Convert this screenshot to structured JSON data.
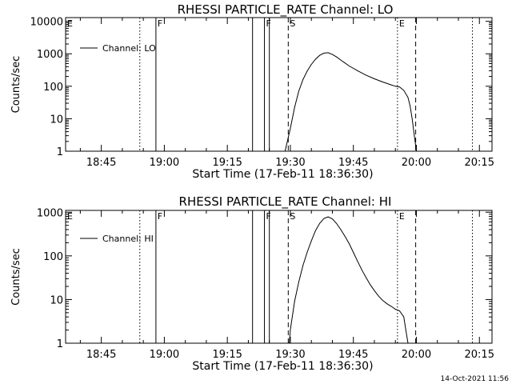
{
  "chart_data": [
    {
      "type": "line",
      "title": "RHESSI PARTICLE_RATE Channel: LO",
      "xlabel": "Start Time (17-Feb-11 18:36:30)",
      "ylabel": "Counts/sec",
      "yscale": "log",
      "ylim": [
        1,
        13000
      ],
      "xlim": [
        "18:36:30",
        "20:18:00"
      ],
      "x_ticks": [
        "18:45",
        "19:00",
        "19:15",
        "19:30",
        "19:45",
        "20:00",
        "20:15"
      ],
      "y_ticks": [
        "1",
        "10",
        "100",
        "1000",
        "10000"
      ],
      "legend": {
        "label": "Channel: LO",
        "position": "top-left"
      },
      "markers": [
        {
          "label": "E",
          "time": "18:36:30",
          "style": "dotted"
        },
        {
          "label": "",
          "time": "18:54:10",
          "style": "dotted"
        },
        {
          "label": "F",
          "time": "18:58:00",
          "style": "solid"
        },
        {
          "label": "",
          "time": "19:21:00",
          "style": "solid"
        },
        {
          "label": "F",
          "time": "19:23:50",
          "style": "solid"
        },
        {
          "label": "",
          "time": "19:25:00",
          "style": "solid"
        },
        {
          "label": "S",
          "time": "19:29:30",
          "style": "dashed"
        },
        {
          "label": "E",
          "time": "19:55:30",
          "style": "dotted"
        },
        {
          "label": "",
          "time": "19:59:50",
          "style": "dashed"
        },
        {
          "label": "",
          "time": "20:13:20",
          "style": "dotted"
        }
      ],
      "series": [
        {
          "name": "Channel: LO",
          "x": [
            "19:28:45",
            "19:29:00",
            "19:30:00",
            "19:31:00",
            "19:32:00",
            "19:33:00",
            "19:34:00",
            "19:35:00",
            "19:36:00",
            "19:37:00",
            "19:38:00",
            "19:39:00",
            "19:40:00",
            "19:41:00",
            "19:42:00",
            "19:43:00",
            "19:44:00",
            "19:46:00",
            "19:48:00",
            "19:50:00",
            "19:52:00",
            "19:54:00",
            "19:55:00",
            "19:56:00",
            "19:57:00",
            "19:58:00",
            "19:58:30",
            "19:59:00",
            "19:59:30",
            "20:00:00"
          ],
          "y": [
            1,
            1.4,
            5,
            22,
            70,
            160,
            290,
            470,
            680,
            900,
            1050,
            1080,
            950,
            800,
            640,
            520,
            420,
            300,
            220,
            170,
            135,
            110,
            100,
            95,
            75,
            45,
            25,
            10,
            3,
            1
          ]
        }
      ]
    },
    {
      "type": "line",
      "title": "RHESSI PARTICLE_RATE Channel: HI",
      "xlabel": "Start Time (17-Feb-11 18:36:30)",
      "ylabel": "Counts/sec",
      "yscale": "log",
      "ylim": [
        1,
        1100
      ],
      "xlim": [
        "18:36:30",
        "20:18:00"
      ],
      "x_ticks": [
        "18:45",
        "19:00",
        "19:15",
        "19:30",
        "19:45",
        "20:00",
        "20:15"
      ],
      "y_ticks": [
        "1",
        "10",
        "100",
        "1000"
      ],
      "legend": {
        "label": "Channel: HI",
        "position": "top-left"
      },
      "markers": [
        {
          "label": "E",
          "time": "18:36:30",
          "style": "dotted"
        },
        {
          "label": "",
          "time": "18:54:10",
          "style": "dotted"
        },
        {
          "label": "F",
          "time": "18:58:00",
          "style": "solid"
        },
        {
          "label": "",
          "time": "19:21:00",
          "style": "solid"
        },
        {
          "label": "F",
          "time": "19:23:50",
          "style": "solid"
        },
        {
          "label": "",
          "time": "19:25:00",
          "style": "solid"
        },
        {
          "label": "S",
          "time": "19:29:30",
          "style": "dashed"
        },
        {
          "label": "E",
          "time": "19:55:30",
          "style": "dotted"
        },
        {
          "label": "",
          "time": "19:59:50",
          "style": "dashed"
        },
        {
          "label": "",
          "time": "20:13:20",
          "style": "dotted"
        }
      ],
      "series": [
        {
          "name": "Channel: HI",
          "x": [
            "19:29:45",
            "19:30:00",
            "19:31:00",
            "19:32:00",
            "19:33:00",
            "19:34:00",
            "19:35:00",
            "19:36:00",
            "19:37:00",
            "19:38:00",
            "19:39:00",
            "19:40:00",
            "19:41:00",
            "19:42:00",
            "19:43:00",
            "19:44:00",
            "19:45:00",
            "19:46:00",
            "19:47:00",
            "19:48:00",
            "19:49:00",
            "19:50:00",
            "19:51:00",
            "19:52:00",
            "19:53:00",
            "19:54:00",
            "19:55:00",
            "19:56:00",
            "19:57:00",
            "19:57:30",
            "19:58:00"
          ],
          "y": [
            1,
            2,
            9,
            25,
            60,
            120,
            220,
            380,
            560,
            720,
            780,
            700,
            550,
            400,
            280,
            190,
            120,
            75,
            48,
            32,
            22,
            16,
            12,
            9.5,
            8,
            7,
            6,
            5.5,
            4,
            2,
            1
          ]
        }
      ]
    }
  ],
  "footer": {
    "timestamp": "14-Oct-2021 11:56"
  }
}
